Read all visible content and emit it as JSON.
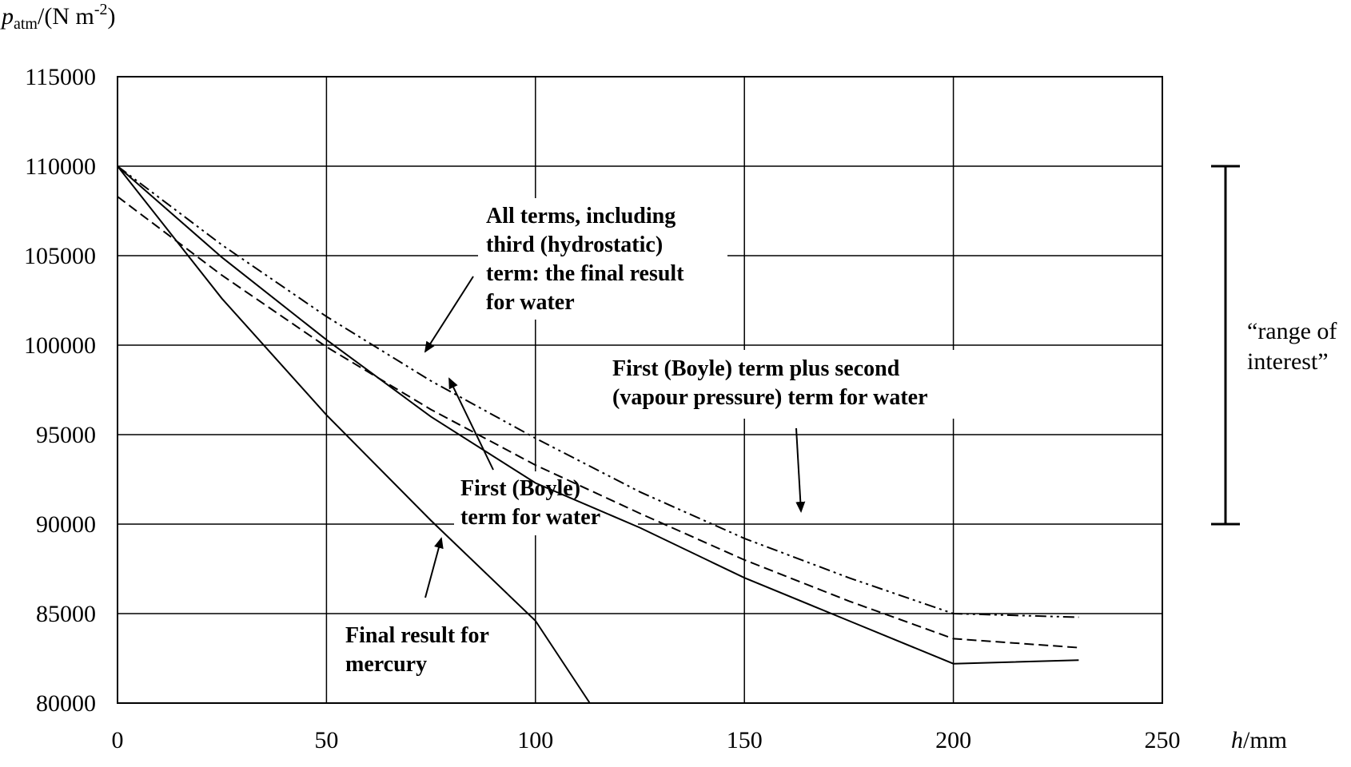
{
  "chart_data": {
    "type": "line",
    "y_axis_title": {
      "p": "p",
      "sub": "atm",
      "unit": "/(N m",
      "sup": "-2",
      "close": ")"
    },
    "x_axis_title": {
      "h": "h",
      "unit": "/mm"
    },
    "xlim": [
      0,
      250
    ],
    "ylim": [
      80000,
      115000
    ],
    "x_ticks": [
      0,
      50,
      100,
      150,
      200,
      250
    ],
    "y_ticks": [
      80000,
      85000,
      90000,
      95000,
      100000,
      105000,
      110000,
      115000
    ],
    "x_tick_labels": [
      "0",
      "50",
      "100",
      "150",
      "200",
      "250"
    ],
    "y_tick_labels": [
      "80000",
      "85000",
      "90000",
      "95000",
      "100000",
      "105000",
      "110000",
      "115000"
    ],
    "grid": true,
    "series": [
      {
        "style": "solid",
        "points": [
          [
            0,
            110000
          ],
          [
            25,
            104900
          ],
          [
            50,
            100300
          ],
          [
            75,
            96000
          ],
          [
            100,
            92300
          ],
          [
            125,
            89800
          ],
          [
            150,
            87000
          ],
          [
            175,
            84600
          ],
          [
            200,
            82200
          ],
          [
            230,
            82400
          ]
        ]
      },
      {
        "style": "dashed",
        "points": [
          [
            0,
            108300
          ],
          [
            25,
            103900
          ],
          [
            50,
            99900
          ],
          [
            75,
            96400
          ],
          [
            100,
            93300
          ],
          [
            125,
            90600
          ],
          [
            150,
            88000
          ],
          [
            175,
            85700
          ],
          [
            200,
            83600
          ],
          [
            230,
            83100
          ]
        ]
      },
      {
        "style": "dashdotdot",
        "points": [
          [
            0,
            110000
          ],
          [
            25,
            105600
          ],
          [
            50,
            101600
          ],
          [
            75,
            98000
          ],
          [
            100,
            94800
          ],
          [
            125,
            91800
          ],
          [
            150,
            89200
          ],
          [
            175,
            87000
          ],
          [
            200,
            85000
          ],
          [
            230,
            84800
          ]
        ]
      },
      {
        "style": "solid",
        "points": [
          [
            0,
            110000
          ],
          [
            25,
            102600
          ],
          [
            50,
            96100
          ],
          [
            75,
            90200
          ],
          [
            100,
            84600
          ],
          [
            113,
            80000
          ]
        ]
      }
    ],
    "annotations": [
      {
        "lines": [
          "All terms, including",
          "third (hydrostatic)",
          "term:  the final result",
          "for water"
        ]
      },
      {
        "lines": [
          "First (Boyle) term plus second",
          "(vapour pressure) term for water"
        ]
      },
      {
        "lines": [
          "First (Boyle)",
          "term for water"
        ]
      },
      {
        "lines": [
          "Final result for",
          "mercury"
        ]
      }
    ],
    "range_of_interest": {
      "range": [
        90000,
        110000
      ],
      "label_lines": [
        "“range of",
        "interest”"
      ]
    }
  }
}
